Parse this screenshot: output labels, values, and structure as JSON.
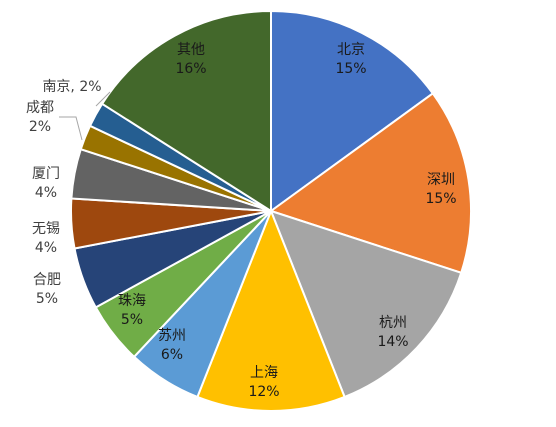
{
  "chart_data": {
    "type": "pie",
    "title": "",
    "slices": [
      {
        "label": "北京",
        "value": 15,
        "display": "15%",
        "color": "#4472C4"
      },
      {
        "label": "深圳",
        "value": 15,
        "display": "15%",
        "color": "#ED7D31"
      },
      {
        "label": "杭州",
        "value": 14,
        "display": "14%",
        "color": "#A5A5A5"
      },
      {
        "label": "上海",
        "value": 12,
        "display": "12%",
        "color": "#FFC000"
      },
      {
        "label": "苏州",
        "value": 6,
        "display": "6%",
        "color": "#5B9BD5"
      },
      {
        "label": "珠海",
        "value": 5,
        "display": "5%",
        "color": "#70AD47"
      },
      {
        "label": "合肥",
        "value": 5,
        "display": "5%",
        "color": "#264478"
      },
      {
        "label": "无锡",
        "value": 4,
        "display": "4%",
        "color": "#9E480E"
      },
      {
        "label": "厦门",
        "value": 4,
        "display": "4%",
        "color": "#636363"
      },
      {
        "label": "成都",
        "value": 2,
        "display": "2%",
        "color": "#997300"
      },
      {
        "label": "南京",
        "value": 2,
        "display": "2%",
        "color": "#255E91"
      },
      {
        "label": "其他",
        "value": 16,
        "display": "16%",
        "color": "#43682B"
      }
    ]
  }
}
